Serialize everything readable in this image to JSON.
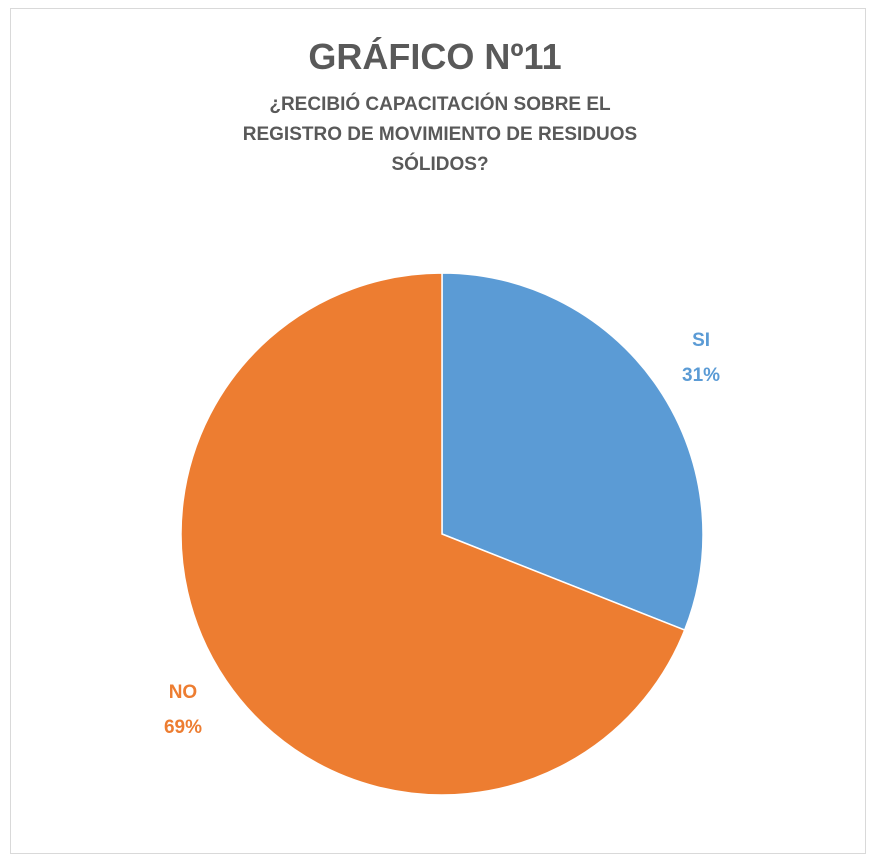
{
  "chart_data": {
    "type": "pie",
    "title": "GRÁFICO Nº11",
    "subtitle": "¿RECIBIÓ CAPACITACIÓN SOBRE EL REGISTRO DE MOVIMIENTO DE RESIDUOS SÓLIDOS?",
    "categories": [
      "SI",
      "NO"
    ],
    "values": [
      31,
      69
    ],
    "value_labels": [
      "31%",
      "69%"
    ],
    "colors": [
      "#5b9bd5",
      "#ed7d31"
    ]
  }
}
